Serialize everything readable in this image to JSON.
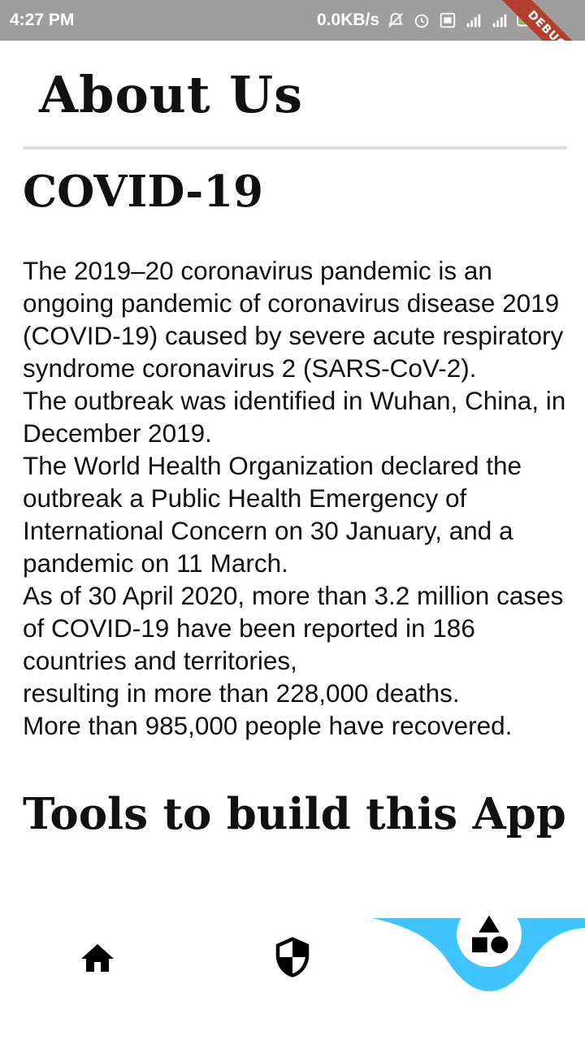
{
  "status_bar": {
    "time": "4:27 PM",
    "network_speed": "0.0KB/s",
    "debug_label": "DEBUG"
  },
  "header": {
    "title": "About Us"
  },
  "content": {
    "covid_heading": "COVID-19",
    "covid_text": "The 2019–20 coronavirus pandemic is an ongoing pandemic of coronavirus disease 2019\n(COVID-19) caused by severe acute respiratory syndrome coronavirus 2 (SARS-CoV-2).\nThe outbreak was identified in Wuhan, China, in December 2019.\nThe World Health Organization declared the outbreak a Public Health Emergency of International Concern on 30 January, and a pandemic on 11 March.\nAs of 30 April 2020, more than 3.2 million cases of COVID-19 have been reported in 186 countries and territories,\nresulting in more than 228,000 deaths.\nMore than 985,000 people have recovered.",
    "tools_heading": "Tools to build this App"
  },
  "bottom_nav": {
    "items": [
      {
        "icon": "home-icon",
        "active": false
      },
      {
        "icon": "shield-icon",
        "active": false
      },
      {
        "icon": "shapes-icon",
        "active": true
      }
    ],
    "accent_color": "#40c4ff"
  }
}
